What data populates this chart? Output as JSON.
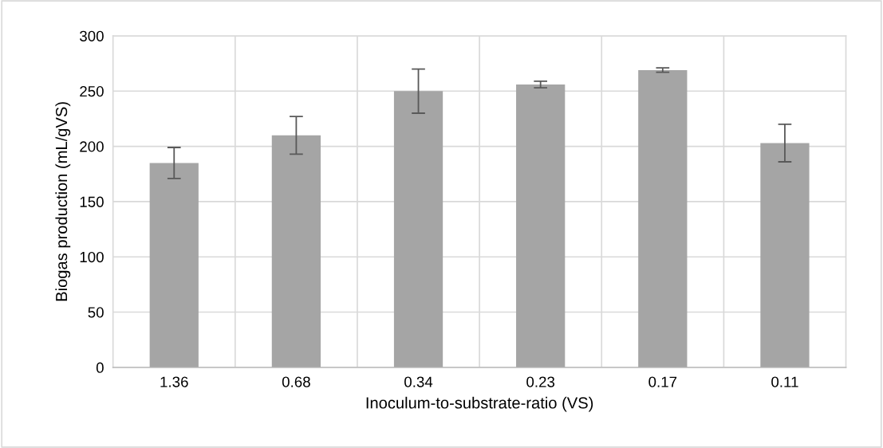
{
  "chart_data": {
    "type": "bar",
    "xlabel": "Inoculum-to-substrate-ratio (VS)",
    "ylabel": "Biogas production (mL/gVS)",
    "categories": [
      "1.36",
      "0.68",
      "0.34",
      "0.23",
      "0.17",
      "0.11"
    ],
    "values": [
      185,
      210,
      250,
      256,
      269,
      203
    ],
    "errors": [
      14,
      17,
      20,
      3,
      2,
      17
    ],
    "color": "#a5a5a5",
    "ylim": [
      0,
      300
    ],
    "yticks": [
      0,
      50,
      100,
      150,
      200,
      250,
      300
    ],
    "grid": true
  }
}
